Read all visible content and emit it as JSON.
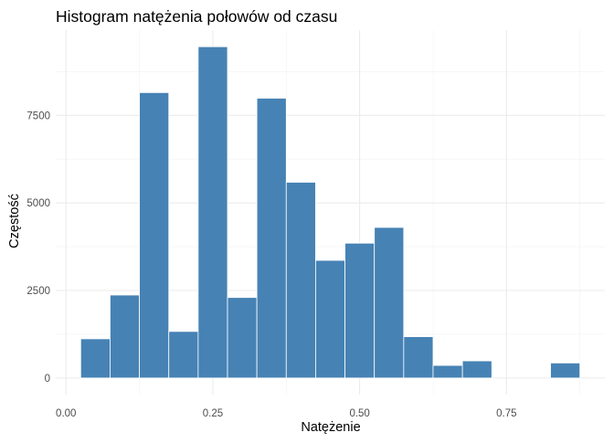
{
  "chart_data": {
    "type": "bar",
    "title": "Histogram natężenia połowów od czasu",
    "xlabel": "Natężenie",
    "ylabel": "Częstość",
    "bin_width": 0.05,
    "bins": [
      {
        "start": 0.025,
        "end": 0.075,
        "count": 1120
      },
      {
        "start": 0.075,
        "end": 0.125,
        "count": 2370
      },
      {
        "start": 0.125,
        "end": 0.175,
        "count": 8150
      },
      {
        "start": 0.175,
        "end": 0.225,
        "count": 1330
      },
      {
        "start": 0.225,
        "end": 0.275,
        "count": 9460
      },
      {
        "start": 0.275,
        "end": 0.325,
        "count": 2300
      },
      {
        "start": 0.325,
        "end": 0.375,
        "count": 7990
      },
      {
        "start": 0.375,
        "end": 0.425,
        "count": 5590
      },
      {
        "start": 0.425,
        "end": 0.475,
        "count": 3360
      },
      {
        "start": 0.475,
        "end": 0.525,
        "count": 3850
      },
      {
        "start": 0.525,
        "end": 0.575,
        "count": 4300
      },
      {
        "start": 0.575,
        "end": 0.625,
        "count": 1180
      },
      {
        "start": 0.625,
        "end": 0.675,
        "count": 360
      },
      {
        "start": 0.675,
        "end": 0.725,
        "count": 490
      },
      {
        "start": 0.725,
        "end": 0.775,
        "count": 0
      },
      {
        "start": 0.775,
        "end": 0.825,
        "count": 0
      },
      {
        "start": 0.825,
        "end": 0.875,
        "count": 430
      }
    ],
    "xlim": [
      -0.0175,
      0.9175
    ],
    "ylim": [
      -473,
      9933
    ],
    "x_ticks": [
      0.0,
      0.25,
      0.5,
      0.75
    ],
    "x_tick_labels": [
      "0.00",
      "0.25",
      "0.50",
      "0.75"
    ],
    "y_ticks": [
      0,
      2500,
      5000,
      7500
    ],
    "y_tick_labels": [
      "0",
      "2500",
      "5000",
      "7500"
    ],
    "grid": true,
    "legend": "none",
    "colors": {
      "bar_fill": "#4682B4",
      "bar_outline": "#ffffff",
      "grid_major": "#ebebeb",
      "grid_minor": "#f2f2f2",
      "tick_text": "#4d4d4d",
      "background": "#ffffff"
    }
  }
}
